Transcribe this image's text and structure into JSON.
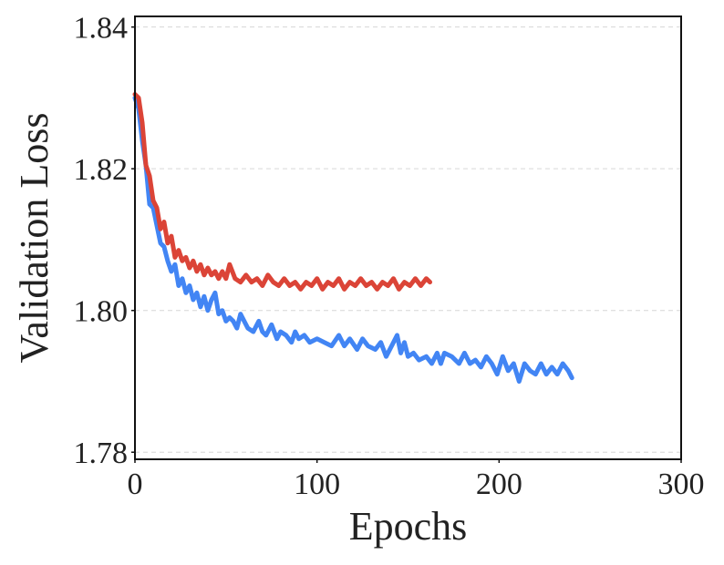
{
  "chart_data": {
    "type": "line",
    "title": "",
    "xlabel": "Epochs",
    "ylabel": "Validation Loss",
    "xlim": [
      0,
      300
    ],
    "ylim": [
      1.779,
      1.8415
    ],
    "x_ticks": [
      0,
      100,
      200,
      300
    ],
    "x_tick_labels": [
      "0",
      "100",
      "200",
      "300"
    ],
    "y_ticks": [
      1.78,
      1.8,
      1.82,
      1.84
    ],
    "y_tick_labels": [
      "1.78",
      "1.80",
      "1.82",
      "1.84"
    ],
    "grid": "horizontal dashed",
    "legend": "none",
    "series": [
      {
        "color": "#4285F4",
        "points": [
          [
            0,
            1.83
          ],
          [
            2,
            1.8285
          ],
          [
            4,
            1.824
          ],
          [
            6,
            1.8205
          ],
          [
            8,
            1.815
          ],
          [
            10,
            1.8145
          ],
          [
            12,
            1.812
          ],
          [
            14,
            1.8095
          ],
          [
            16,
            1.809
          ],
          [
            18,
            1.807
          ],
          [
            20,
            1.8055
          ],
          [
            22,
            1.8065
          ],
          [
            24,
            1.8035
          ],
          [
            26,
            1.8045
          ],
          [
            28,
            1.8025
          ],
          [
            30,
            1.8035
          ],
          [
            32,
            1.8015
          ],
          [
            34,
            1.8025
          ],
          [
            36,
            1.8005
          ],
          [
            38,
            1.802
          ],
          [
            40,
            1.8
          ],
          [
            42,
            1.8015
          ],
          [
            44,
            1.8025
          ],
          [
            46,
            1.7995
          ],
          [
            48,
            1.8
          ],
          [
            50,
            1.7985
          ],
          [
            52,
            1.799
          ],
          [
            54,
            1.7985
          ],
          [
            56,
            1.7975
          ],
          [
            58,
            1.7995
          ],
          [
            60,
            1.7985
          ],
          [
            62,
            1.7975
          ],
          [
            65,
            1.797
          ],
          [
            68,
            1.7985
          ],
          [
            70,
            1.797
          ],
          [
            72,
            1.7965
          ],
          [
            75,
            1.798
          ],
          [
            78,
            1.796
          ],
          [
            80,
            1.797
          ],
          [
            83,
            1.7965
          ],
          [
            86,
            1.7955
          ],
          [
            88,
            1.797
          ],
          [
            90,
            1.796
          ],
          [
            93,
            1.7965
          ],
          [
            96,
            1.7955
          ],
          [
            100,
            1.796
          ],
          [
            104,
            1.7955
          ],
          [
            108,
            1.795
          ],
          [
            112,
            1.7965
          ],
          [
            115,
            1.795
          ],
          [
            118,
            1.796
          ],
          [
            122,
            1.7945
          ],
          [
            125,
            1.796
          ],
          [
            128,
            1.795
          ],
          [
            132,
            1.7945
          ],
          [
            135,
            1.7955
          ],
          [
            138,
            1.7935
          ],
          [
            141,
            1.795
          ],
          [
            144,
            1.7965
          ],
          [
            146,
            1.794
          ],
          [
            148,
            1.7955
          ],
          [
            150,
            1.7935
          ],
          [
            153,
            1.794
          ],
          [
            156,
            1.793
          ],
          [
            160,
            1.7935
          ],
          [
            163,
            1.7925
          ],
          [
            166,
            1.794
          ],
          [
            168,
            1.7925
          ],
          [
            170,
            1.794
          ],
          [
            174,
            1.7935
          ],
          [
            178,
            1.7925
          ],
          [
            181,
            1.794
          ],
          [
            184,
            1.7925
          ],
          [
            187,
            1.793
          ],
          [
            190,
            1.792
          ],
          [
            193,
            1.7935
          ],
          [
            196,
            1.7925
          ],
          [
            199,
            1.791
          ],
          [
            202,
            1.7935
          ],
          [
            205,
            1.7915
          ],
          [
            208,
            1.7925
          ],
          [
            211,
            1.79
          ],
          [
            214,
            1.7925
          ],
          [
            217,
            1.7915
          ],
          [
            220,
            1.791
          ],
          [
            223,
            1.7925
          ],
          [
            226,
            1.791
          ],
          [
            229,
            1.792
          ],
          [
            232,
            1.791
          ],
          [
            235,
            1.7925
          ],
          [
            238,
            1.7915
          ],
          [
            240,
            1.7905
          ]
        ]
      },
      {
        "color": "#DB4437",
        "points": [
          [
            0,
            1.8305
          ],
          [
            2,
            1.83
          ],
          [
            4,
            1.8265
          ],
          [
            6,
            1.8205
          ],
          [
            8,
            1.819
          ],
          [
            10,
            1.8155
          ],
          [
            12,
            1.8145
          ],
          [
            14,
            1.8115
          ],
          [
            16,
            1.8125
          ],
          [
            18,
            1.8095
          ],
          [
            20,
            1.8105
          ],
          [
            22,
            1.8075
          ],
          [
            24,
            1.8085
          ],
          [
            26,
            1.807
          ],
          [
            28,
            1.8075
          ],
          [
            30,
            1.806
          ],
          [
            32,
            1.807
          ],
          [
            34,
            1.8055
          ],
          [
            36,
            1.8065
          ],
          [
            38,
            1.805
          ],
          [
            40,
            1.806
          ],
          [
            42,
            1.805
          ],
          [
            44,
            1.8055
          ],
          [
            46,
            1.8045
          ],
          [
            48,
            1.8055
          ],
          [
            50,
            1.8045
          ],
          [
            52,
            1.8065
          ],
          [
            55,
            1.8045
          ],
          [
            58,
            1.804
          ],
          [
            61,
            1.805
          ],
          [
            64,
            1.804
          ],
          [
            67,
            1.8045
          ],
          [
            70,
            1.8035
          ],
          [
            73,
            1.805
          ],
          [
            76,
            1.804
          ],
          [
            79,
            1.8035
          ],
          [
            82,
            1.8045
          ],
          [
            85,
            1.8035
          ],
          [
            88,
            1.804
          ],
          [
            91,
            1.803
          ],
          [
            94,
            1.804
          ],
          [
            97,
            1.8035
          ],
          [
            100,
            1.8045
          ],
          [
            103,
            1.803
          ],
          [
            106,
            1.804
          ],
          [
            109,
            1.8035
          ],
          [
            112,
            1.8045
          ],
          [
            115,
            1.803
          ],
          [
            118,
            1.804
          ],
          [
            121,
            1.8035
          ],
          [
            124,
            1.8045
          ],
          [
            127,
            1.8035
          ],
          [
            130,
            1.804
          ],
          [
            133,
            1.803
          ],
          [
            136,
            1.804
          ],
          [
            139,
            1.8035
          ],
          [
            142,
            1.8045
          ],
          [
            145,
            1.803
          ],
          [
            148,
            1.804
          ],
          [
            151,
            1.8035
          ],
          [
            154,
            1.8045
          ],
          [
            157,
            1.8035
          ],
          [
            160,
            1.8045
          ],
          [
            162,
            1.804
          ]
        ]
      }
    ]
  }
}
